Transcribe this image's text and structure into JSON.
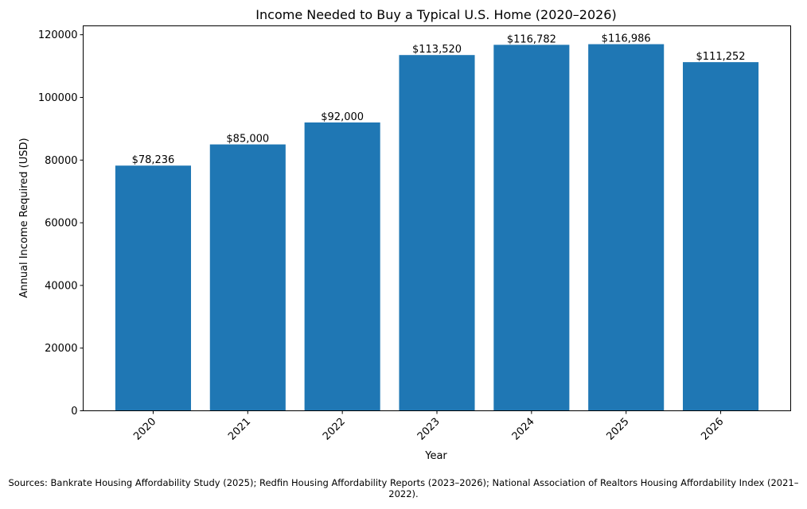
{
  "chart_data": {
    "type": "bar",
    "title": "Income Needed to Buy a Typical U.S. Home (2020–2026)",
    "xlabel": "Year",
    "ylabel": "Annual Income Required (USD)",
    "categories": [
      "2020",
      "2021",
      "2022",
      "2023",
      "2024",
      "2025",
      "2026"
    ],
    "values": [
      78236,
      85000,
      92000,
      113520,
      116782,
      116986,
      111252
    ],
    "data_labels": [
      "$78,236",
      "$85,000",
      "$92,000",
      "$113,520",
      "$116,782",
      "$116,986",
      "$111,252"
    ],
    "ylim": [
      0,
      122835
    ],
    "yticks": [
      0,
      20000,
      40000,
      60000,
      80000,
      100000,
      120000
    ],
    "ytick_labels": [
      "0",
      "20000",
      "40000",
      "60000",
      "80000",
      "100000",
      "120000"
    ],
    "xtick_rotation": 45,
    "grid": false,
    "bar_color": "#1f77b4"
  },
  "footer": {
    "source": "Sources: Bankrate Housing Affordability Study (2025); Redfin Housing Affordability Reports (2023–2026); National Association of Realtors Housing Affordability Index (2021–2022)."
  }
}
